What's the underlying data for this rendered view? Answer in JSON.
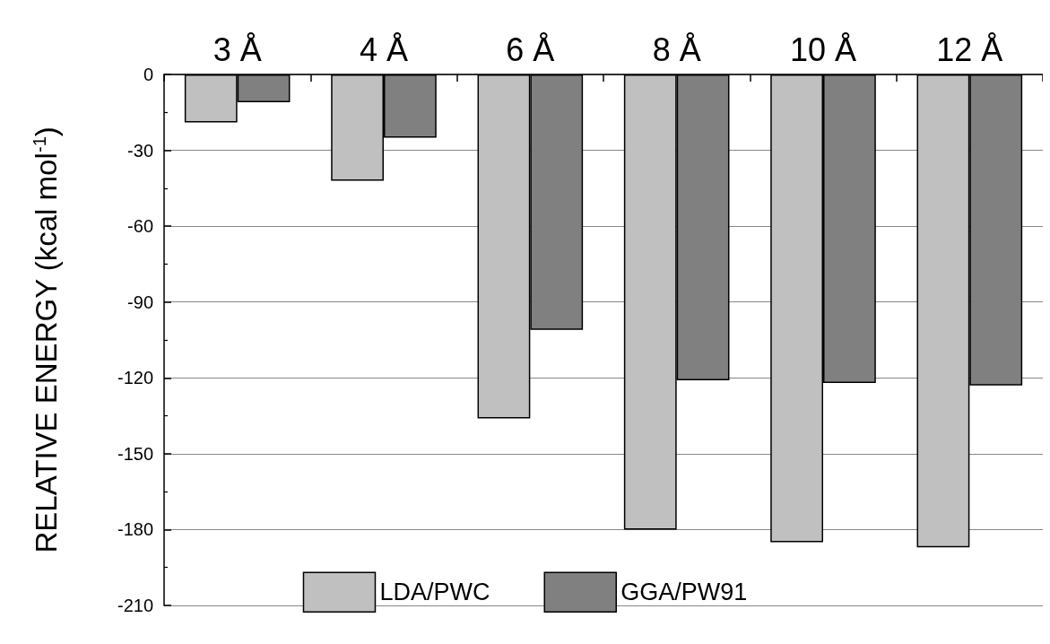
{
  "chart_data": {
    "type": "bar",
    "ylabel": "RELATIVE ENERGY (kcal mol$^{-1}$)",
    "categories": [
      "3 Å",
      "4 Å",
      "6 Å",
      "8 Å",
      "10 Å",
      "12 Å"
    ],
    "series": [
      {
        "name": "LDA/PWC",
        "color": "#c0c0c0",
        "values": [
          -19,
          -42,
          -136,
          -180,
          -185,
          -187
        ]
      },
      {
        "name": "GGA/PW91",
        "color": "#808080",
        "values": [
          -11,
          -25,
          -101,
          -121,
          -122,
          -123
        ]
      }
    ],
    "ylim": [
      -210,
      0
    ],
    "yticks": [
      -210,
      -180,
      -150,
      -120,
      -90,
      -60,
      -30,
      0
    ],
    "grid": "y",
    "legend": "bottom"
  }
}
